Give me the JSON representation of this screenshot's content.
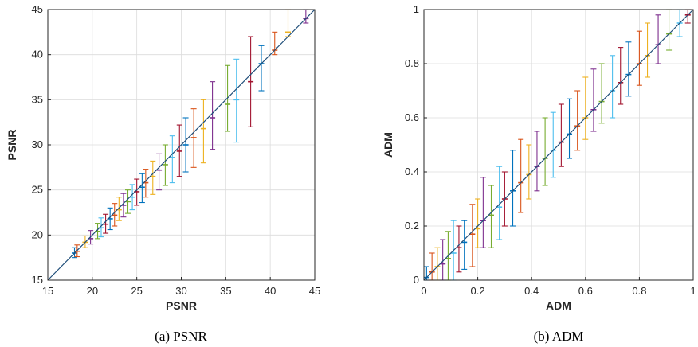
{
  "chart_data": [
    {
      "type": "scatter",
      "caption": "(a) PSNR",
      "xlabel": "PSNR",
      "ylabel": "PSNR",
      "xlim": [
        15,
        45
      ],
      "ylim": [
        15,
        45
      ],
      "xticks": [
        15,
        20,
        25,
        30,
        35,
        40,
        45
      ],
      "yticks": [
        15,
        20,
        25,
        30,
        35,
        40,
        45
      ],
      "grid": true,
      "reference_line": [
        [
          15,
          15
        ],
        [
          45,
          45
        ]
      ],
      "series_colors": [
        "#0072BD",
        "#D95319",
        "#EDB120",
        "#7E2F8E",
        "#77AC30",
        "#4DBEEE",
        "#A2142F"
      ],
      "error_bars": [
        {
          "x": 18.0,
          "y": 18.0,
          "low": 17.5,
          "high": 18.6
        },
        {
          "x": 18.3,
          "y": 18.2,
          "low": 17.6,
          "high": 18.9
        },
        {
          "x": 19.2,
          "y": 19.2,
          "low": 18.6,
          "high": 19.9
        },
        {
          "x": 19.8,
          "y": 19.6,
          "low": 19.0,
          "high": 20.5
        },
        {
          "x": 20.6,
          "y": 20.4,
          "low": 19.6,
          "high": 21.3
        },
        {
          "x": 21.0,
          "y": 20.8,
          "low": 19.8,
          "high": 21.9
        },
        {
          "x": 21.5,
          "y": 21.2,
          "low": 20.2,
          "high": 22.3
        },
        {
          "x": 22.0,
          "y": 21.8,
          "low": 20.6,
          "high": 23.0
        },
        {
          "x": 22.5,
          "y": 22.2,
          "low": 21.0,
          "high": 23.5
        },
        {
          "x": 23.0,
          "y": 22.8,
          "low": 21.6,
          "high": 24.2
        },
        {
          "x": 23.5,
          "y": 23.3,
          "low": 22.0,
          "high": 24.6
        },
        {
          "x": 24.0,
          "y": 23.7,
          "low": 22.4,
          "high": 25.0
        },
        {
          "x": 24.5,
          "y": 24.2,
          "low": 22.8,
          "high": 25.6
        },
        {
          "x": 25.0,
          "y": 24.8,
          "low": 23.3,
          "high": 26.2
        },
        {
          "x": 25.6,
          "y": 25.3,
          "low": 23.6,
          "high": 26.8
        },
        {
          "x": 26.0,
          "y": 25.8,
          "low": 24.2,
          "high": 27.3
        },
        {
          "x": 26.8,
          "y": 26.5,
          "low": 24.5,
          "high": 28.2
        },
        {
          "x": 27.5,
          "y": 27.2,
          "low": 25.0,
          "high": 29.0
        },
        {
          "x": 28.2,
          "y": 27.8,
          "low": 25.5,
          "high": 30.0
        },
        {
          "x": 29.0,
          "y": 28.6,
          "low": 25.8,
          "high": 31.0
        },
        {
          "x": 29.8,
          "y": 29.3,
          "low": 26.5,
          "high": 32.2
        },
        {
          "x": 30.5,
          "y": 30.0,
          "low": 27.0,
          "high": 33.0
        },
        {
          "x": 31.4,
          "y": 30.8,
          "low": 27.5,
          "high": 34.0
        },
        {
          "x": 32.5,
          "y": 31.8,
          "low": 28.0,
          "high": 35.0
        },
        {
          "x": 33.5,
          "y": 33.0,
          "low": 29.5,
          "high": 37.0
        },
        {
          "x": 35.2,
          "y": 34.5,
          "low": 31.5,
          "high": 38.8
        },
        {
          "x": 36.2,
          "y": 35.0,
          "low": 30.3,
          "high": 39.5
        },
        {
          "x": 37.8,
          "y": 37.0,
          "low": 32.0,
          "high": 42.0
        },
        {
          "x": 39.0,
          "y": 39.0,
          "low": 36.0,
          "high": 41.0
        },
        {
          "x": 40.5,
          "y": 40.5,
          "low": 40.0,
          "high": 42.5
        },
        {
          "x": 42.0,
          "y": 42.5,
          "low": 42.0,
          "high": 45.0
        },
        {
          "x": 44.0,
          "y": 44.0,
          "low": 43.5,
          "high": 45.0
        }
      ]
    },
    {
      "type": "scatter",
      "caption": "(b) ADM",
      "xlabel": "ADM",
      "ylabel": "ADM",
      "xlim": [
        0,
        1
      ],
      "ylim": [
        0,
        1
      ],
      "xticks": [
        "0",
        "0.2",
        "0.4",
        "0.6",
        "0.8",
        "1"
      ],
      "yticks": [
        "0",
        "0.2",
        "0.4",
        "0.6",
        "0.8",
        "1"
      ],
      "grid": true,
      "reference_line": [
        [
          0,
          0
        ],
        [
          1,
          1
        ]
      ],
      "series_colors": [
        "#0072BD",
        "#D95319",
        "#EDB120",
        "#7E2F8E",
        "#77AC30",
        "#4DBEEE",
        "#A2142F"
      ],
      "error_bars": [
        {
          "x": 0.01,
          "y": 0.01,
          "low": 0.0,
          "high": 0.05
        },
        {
          "x": 0.03,
          "y": 0.03,
          "low": 0.0,
          "high": 0.1
        },
        {
          "x": 0.05,
          "y": 0.05,
          "low": 0.0,
          "high": 0.12
        },
        {
          "x": 0.07,
          "y": 0.06,
          "low": 0.0,
          "high": 0.15
        },
        {
          "x": 0.09,
          "y": 0.08,
          "low": 0.0,
          "high": 0.18
        },
        {
          "x": 0.11,
          "y": 0.1,
          "low": 0.0,
          "high": 0.22
        },
        {
          "x": 0.13,
          "y": 0.12,
          "low": 0.03,
          "high": 0.2
        },
        {
          "x": 0.15,
          "y": 0.14,
          "low": 0.04,
          "high": 0.22
        },
        {
          "x": 0.18,
          "y": 0.17,
          "low": 0.05,
          "high": 0.28
        },
        {
          "x": 0.2,
          "y": 0.19,
          "low": 0.12,
          "high": 0.3
        },
        {
          "x": 0.22,
          "y": 0.22,
          "low": 0.12,
          "high": 0.38
        },
        {
          "x": 0.25,
          "y": 0.24,
          "low": 0.12,
          "high": 0.35
        },
        {
          "x": 0.28,
          "y": 0.27,
          "low": 0.15,
          "high": 0.42
        },
        {
          "x": 0.3,
          "y": 0.3,
          "low": 0.2,
          "high": 0.4
        },
        {
          "x": 0.33,
          "y": 0.33,
          "low": 0.2,
          "high": 0.48
        },
        {
          "x": 0.36,
          "y": 0.36,
          "low": 0.25,
          "high": 0.52
        },
        {
          "x": 0.39,
          "y": 0.39,
          "low": 0.3,
          "high": 0.5
        },
        {
          "x": 0.42,
          "y": 0.42,
          "low": 0.33,
          "high": 0.55
        },
        {
          "x": 0.45,
          "y": 0.45,
          "low": 0.35,
          "high": 0.6
        },
        {
          "x": 0.48,
          "y": 0.48,
          "low": 0.38,
          "high": 0.62
        },
        {
          "x": 0.51,
          "y": 0.51,
          "low": 0.42,
          "high": 0.65
        },
        {
          "x": 0.54,
          "y": 0.54,
          "low": 0.45,
          "high": 0.67
        },
        {
          "x": 0.57,
          "y": 0.57,
          "low": 0.48,
          "high": 0.7
        },
        {
          "x": 0.6,
          "y": 0.6,
          "low": 0.52,
          "high": 0.75
        },
        {
          "x": 0.63,
          "y": 0.63,
          "low": 0.55,
          "high": 0.78
        },
        {
          "x": 0.66,
          "y": 0.66,
          "low": 0.58,
          "high": 0.8
        },
        {
          "x": 0.7,
          "y": 0.7,
          "low": 0.6,
          "high": 0.83
        },
        {
          "x": 0.73,
          "y": 0.73,
          "low": 0.65,
          "high": 0.86
        },
        {
          "x": 0.76,
          "y": 0.76,
          "low": 0.68,
          "high": 0.88
        },
        {
          "x": 0.8,
          "y": 0.8,
          "low": 0.72,
          "high": 0.92
        },
        {
          "x": 0.83,
          "y": 0.83,
          "low": 0.75,
          "high": 0.95
        },
        {
          "x": 0.87,
          "y": 0.87,
          "low": 0.8,
          "high": 0.98
        },
        {
          "x": 0.91,
          "y": 0.91,
          "low": 0.85,
          "high": 1.0
        },
        {
          "x": 0.95,
          "y": 0.95,
          "low": 0.9,
          "high": 1.0
        },
        {
          "x": 0.98,
          "y": 0.98,
          "low": 0.95,
          "high": 1.0
        }
      ]
    }
  ]
}
